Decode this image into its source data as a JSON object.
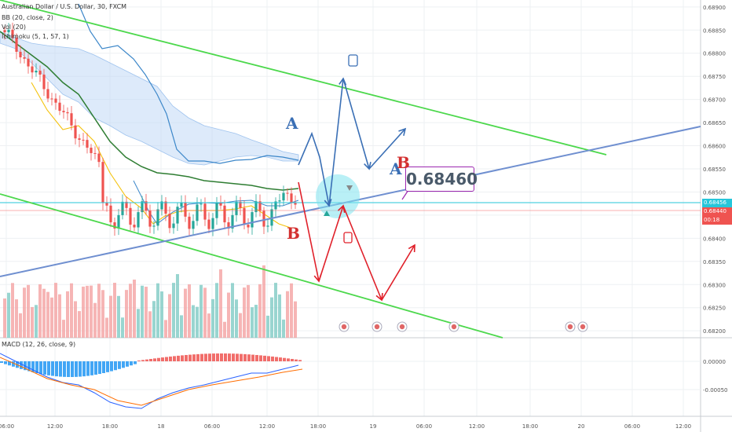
{
  "chart_data": {
    "type": "candlestick",
    "symbol": "Australian Dollar / U.S. Dollar, 30, FXCM",
    "indicators": {
      "bb": "BB (20, close, 2)",
      "vol": "Vol (20)",
      "ichimoku": "Ichimoku (5, 1, 57, 1)",
      "macd": "MACD (12, 26, close, 9)"
    },
    "price_axis": {
      "labels": [
        "0.68900",
        "0.68850",
        "0.68800",
        "0.68750",
        "0.68700",
        "0.68650",
        "0.68600",
        "0.68550",
        "0.68500",
        "0.68450",
        "0.68400",
        "0.68350",
        "0.68300",
        "0.68250",
        "0.68200"
      ],
      "range": [
        0.68185,
        0.68915
      ]
    },
    "macd_axis": {
      "labels": [
        "0.00000",
        "-0.00050"
      ]
    },
    "time_axis": [
      "06:00",
      "12:00",
      "18:00",
      "18",
      "06:00",
      "12:00",
      "18:00",
      "19",
      "06:00",
      "12:00",
      "18:00",
      "20",
      "06:00",
      "12:00"
    ],
    "price_tags": [
      {
        "value": "0.68456",
        "color": "#26c6da"
      },
      {
        "value": "0.68440",
        "color": "#ef5350"
      },
      {
        "value": "00:18",
        "color": "#ef5350"
      }
    ],
    "annotation_price": "0.68460",
    "scenario_labels": {
      "blue_a_1": "A",
      "blue_a_2": "A",
      "red_b_1": "B",
      "red_b_2": "B"
    },
    "last_close": 0.6844,
    "trendlines": {
      "upper_green": [
        [
          0.6888,
          0.6856
        ]
      ],
      "lower_green": [
        [
          0.6848,
          0.6815
        ]
      ],
      "blue_support": [
        [
          0.683,
          0.6862
        ]
      ]
    }
  },
  "colors": {
    "up": "#26a69a",
    "down": "#ef5350",
    "green_line": "#4cd84c",
    "blue_line": "#6f8fd0",
    "bb_band": "#2e7d32",
    "cloud": "#bcd6f5"
  }
}
